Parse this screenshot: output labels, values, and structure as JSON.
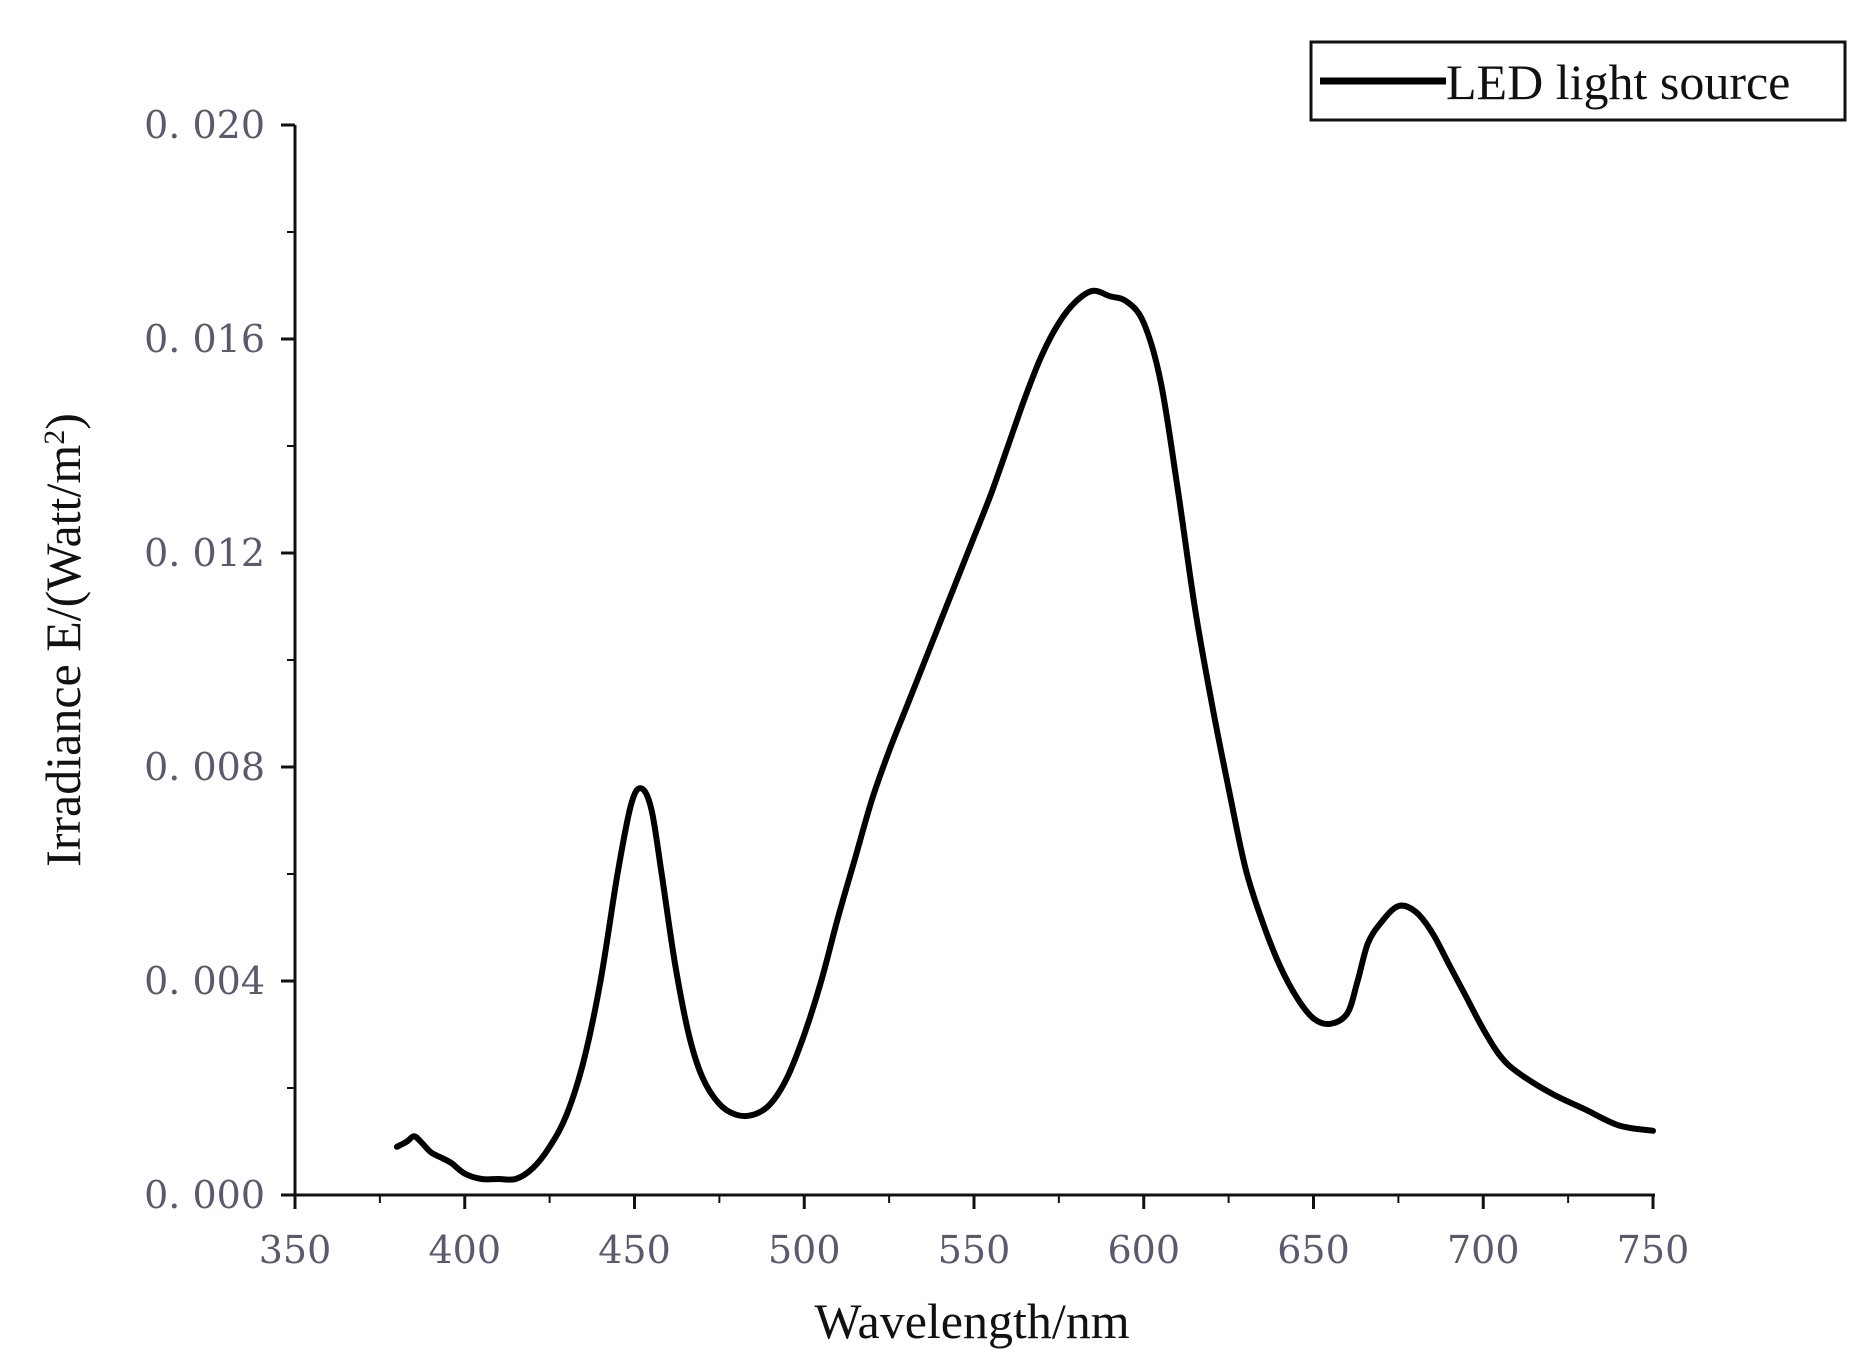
{
  "chart_data": {
    "type": "line",
    "xlabel": "Wavelength/nm",
    "ylabel": "Irradiance E/(Watt/m",
    "ylabel_superscript": "2",
    "ylabel_suffix": ")",
    "xlim": [
      350,
      750
    ],
    "ylim": [
      0.0,
      0.02
    ],
    "xticks": [
      350,
      400,
      450,
      500,
      550,
      600,
      650,
      700,
      750
    ],
    "xtick_labels": [
      "350",
      "400",
      "450",
      "500",
      "550",
      "600",
      "650",
      "700",
      "750"
    ],
    "yticks": [
      0.0,
      0.004,
      0.008,
      0.012,
      0.016,
      0.02
    ],
    "ytick_labels": [
      "0. 000",
      "0. 004",
      "0. 008",
      "0. 012",
      "0. 016",
      "0. 020"
    ],
    "legend": {
      "position": "top-right",
      "entries": [
        "LED light source"
      ]
    },
    "grid": false,
    "series": [
      {
        "name": "LED light source",
        "color": "#000000",
        "x": [
          380,
          383,
          385,
          387,
          390,
          393,
          396,
          400,
          405,
          410,
          415,
          420,
          425,
          430,
          435,
          440,
          445,
          449,
          452,
          455,
          458,
          462,
          466,
          470,
          475,
          480,
          485,
          490,
          495,
          500,
          505,
          510,
          515,
          520,
          525,
          530,
          535,
          540,
          545,
          550,
          555,
          560,
          565,
          570,
          575,
          580,
          585,
          590,
          595,
          600,
          605,
          610,
          615,
          620,
          625,
          630,
          635,
          640,
          645,
          650,
          655,
          660,
          663,
          666,
          670,
          675,
          680,
          685,
          690,
          695,
          700,
          705,
          710,
          720,
          730,
          740,
          750
        ],
        "y": [
          0.0009,
          0.001,
          0.0011,
          0.001,
          0.0008,
          0.0007,
          0.0006,
          0.0004,
          0.0003,
          0.0003,
          0.0003,
          0.0005,
          0.0009,
          0.0015,
          0.0025,
          0.004,
          0.006,
          0.0073,
          0.0076,
          0.0072,
          0.006,
          0.0043,
          0.003,
          0.0022,
          0.0017,
          0.0015,
          0.0015,
          0.0017,
          0.0022,
          0.003,
          0.004,
          0.0052,
          0.0063,
          0.0074,
          0.0083,
          0.0091,
          0.0099,
          0.0107,
          0.0115,
          0.0123,
          0.0131,
          0.014,
          0.0149,
          0.0157,
          0.0163,
          0.0167,
          0.0169,
          0.0168,
          0.0167,
          0.0163,
          0.0152,
          0.0132,
          0.011,
          0.0092,
          0.0076,
          0.0061,
          0.0051,
          0.0043,
          0.0037,
          0.0033,
          0.0032,
          0.0034,
          0.004,
          0.0047,
          0.0051,
          0.0054,
          0.0053,
          0.0049,
          0.0043,
          0.0037,
          0.0031,
          0.0026,
          0.0023,
          0.0019,
          0.0016,
          0.0013,
          0.0012
        ]
      }
    ]
  }
}
